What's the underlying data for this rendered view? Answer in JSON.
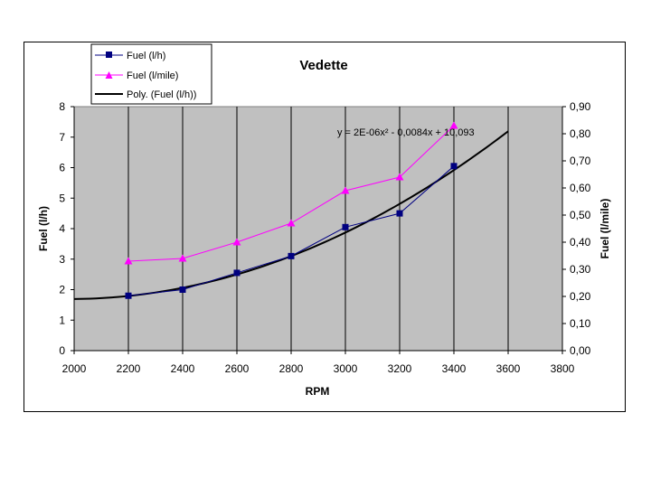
{
  "chart_data": {
    "type": "line",
    "title": "Vedette",
    "xlabel": "RPM",
    "ylabel": "Fuel (l/h)",
    "y2label": "Fuel (l/mile)",
    "xlim": [
      2000,
      3800
    ],
    "ylim": [
      0,
      8
    ],
    "y2lim": [
      0,
      0.9
    ],
    "x_ticks": [
      2000,
      2200,
      2400,
      2600,
      2800,
      3000,
      3200,
      3400,
      3600,
      3800
    ],
    "y_ticks": [
      "0",
      "1",
      "2",
      "3",
      "4",
      "5",
      "6",
      "7",
      "8"
    ],
    "y2_ticks": [
      "0,00",
      "0,10",
      "0,20",
      "0,30",
      "0,40",
      "0,50",
      "0,60",
      "0,70",
      "0,80",
      "0,90"
    ],
    "grid": "vertical",
    "plot_background": "#C0C0C0",
    "legend_position": "top-left",
    "series": [
      {
        "name": "Fuel (l/h)",
        "axis": "left",
        "color": "#000080",
        "marker": "square",
        "x": [
          2200,
          2400,
          2600,
          2800,
          3000,
          3200,
          3400
        ],
        "y": [
          1.8,
          2.0,
          2.55,
          3.1,
          4.05,
          4.5,
          6.05
        ]
      },
      {
        "name": "Fuel (l/mile)",
        "axis": "right",
        "color": "#FF00FF",
        "marker": "triangle",
        "x": [
          2200,
          2400,
          2600,
          2800,
          3000,
          3200,
          3400
        ],
        "y": [
          0.33,
          0.34,
          0.4,
          0.47,
          0.59,
          0.64,
          0.83
        ]
      },
      {
        "name": "Poly. (Fuel (l/h))",
        "type": "trendline",
        "axis": "left",
        "color": "#000000",
        "equation": "y = 2E-06x² - 0,0084x + 10,093",
        "x_range": [
          2000,
          3600
        ]
      }
    ]
  }
}
